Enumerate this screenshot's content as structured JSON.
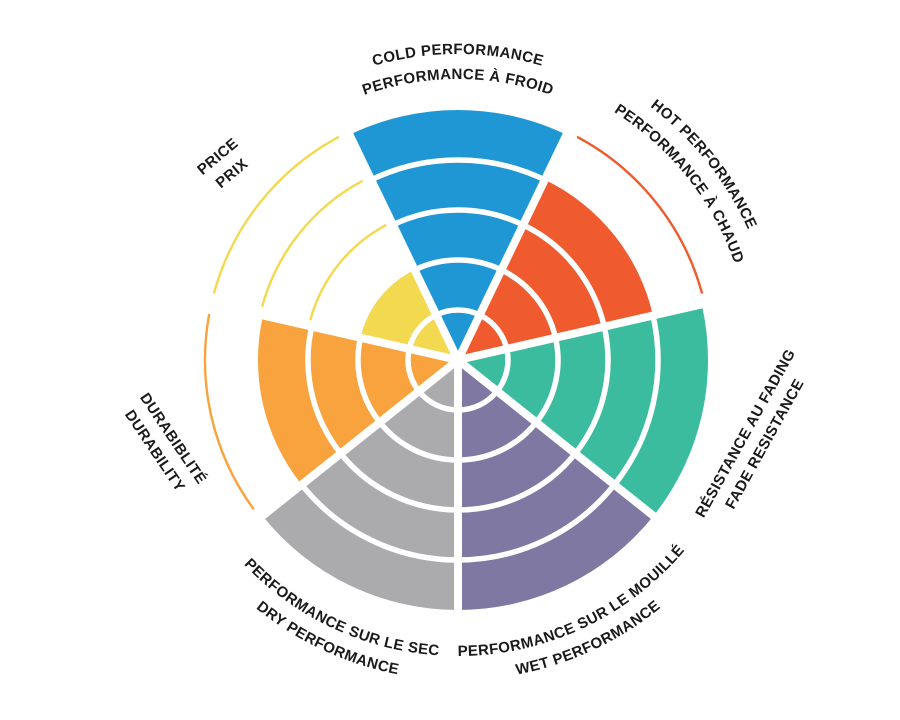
{
  "chart_data": {
    "type": "polar-wheel",
    "rings": 5,
    "max_value": 5,
    "colors": {
      "background": "#FFFFFF",
      "separator": "#FFFFFF",
      "label_text": "#1A1A1A"
    },
    "categories": [
      {
        "id": "cold-performance",
        "label_en": "COLD PERFORMANCE",
        "label_fr": "PERFORMANCE À FROID",
        "value": 5,
        "color": "#1F97D4"
      },
      {
        "id": "hot-performance",
        "label_en": "HOT PERFORMANCE",
        "label_fr": "PERFORMANCE À CHAUD",
        "value": 4,
        "color": "#EF5B2E"
      },
      {
        "id": "fade-resistance",
        "label_en": "FADE RESISTANCE",
        "label_fr": "RÉSISTANCE AU FADING",
        "value": 5,
        "color": "#3BBC9E"
      },
      {
        "id": "wet-performance",
        "label_en": "WET PERFORMANCE",
        "label_fr": "PERFORMANCE SUR LE MOUILLÉ",
        "value": 5,
        "color": "#7F78A2"
      },
      {
        "id": "dry-performance",
        "label_en": "DRY PERFORMANCE",
        "label_fr": "PERFORMANCE SUR LE SEC",
        "value": 5,
        "color": "#ABAAAC"
      },
      {
        "id": "durability",
        "label_en": "DURABILITY",
        "label_fr": "DURABIBLITÉ",
        "value": 4,
        "color": "#F8A33E"
      },
      {
        "id": "price",
        "label_en": "PRICE",
        "label_fr": "PRIX",
        "value": 2,
        "color": "#F3D94F"
      }
    ]
  }
}
